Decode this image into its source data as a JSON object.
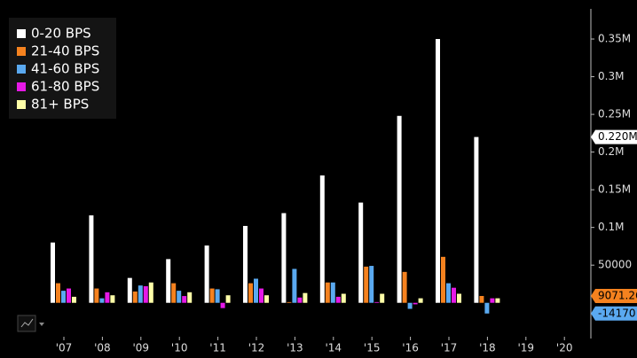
{
  "chart_data": {
    "type": "bar",
    "categories": [
      "'07",
      "'08",
      "'09",
      "'10",
      "'11",
      "'12",
      "'13",
      "'14",
      "'15",
      "'16",
      "'17",
      "'18",
      "'19",
      "'20"
    ],
    "series": [
      {
        "name": "0-20 BPS",
        "color": "#ffffff",
        "values": [
          80000,
          116000,
          33000,
          58000,
          76000,
          102000,
          119000,
          169000,
          133000,
          248000,
          350000,
          220000,
          null,
          null
        ],
        "value_labels": [
          null,
          null,
          null,
          null,
          null,
          null,
          null,
          null,
          null,
          null,
          null,
          "0.220M",
          null,
          null
        ]
      },
      {
        "name": "21-40 BPS",
        "color": "#f5821f",
        "values": [
          26000,
          19000,
          15000,
          26000,
          19000,
          26000,
          1000,
          27000,
          48000,
          41000,
          61000,
          9071.26,
          null,
          null
        ],
        "value_labels": [
          null,
          null,
          null,
          null,
          null,
          null,
          null,
          null,
          null,
          null,
          null,
          "9071.26",
          null,
          null
        ]
      },
      {
        "name": "41-60 BPS",
        "color": "#5aa9f0",
        "values": [
          16000,
          6000,
          23000,
          16000,
          18000,
          32000,
          45000,
          27000,
          49000,
          -8000,
          26000,
          -14170,
          null,
          null
        ],
        "value_labels": [
          null,
          null,
          null,
          null,
          null,
          null,
          null,
          null,
          null,
          null,
          null,
          "-14170",
          null,
          null
        ]
      },
      {
        "name": "61-80 BPS",
        "color": "#e619e6",
        "values": [
          19000,
          14000,
          22000,
          9000,
          -7000,
          19000,
          7000,
          8000,
          1000,
          -2000,
          20000,
          6000,
          null,
          null
        ]
      },
      {
        "name": "81+ BPS",
        "color": "#ffffa8",
        "values": [
          8000,
          10000,
          27000,
          14000,
          10000,
          10000,
          13000,
          12000,
          12000,
          6000,
          12000,
          6000,
          null,
          null
        ]
      }
    ],
    "ylim": [
      -45000,
      390000
    ],
    "yticks": [
      50000,
      {
        "value": 100000,
        "label": "0.1M"
      },
      {
        "value": 150000,
        "label": "0.15M"
      },
      {
        "value": 200000,
        "label": "0.2M"
      },
      {
        "value": 250000,
        "label": "0.25M"
      },
      {
        "value": 300000,
        "label": "0.3M"
      },
      {
        "value": 350000,
        "label": "0.35M"
      }
    ],
    "legend": "top-left"
  }
}
